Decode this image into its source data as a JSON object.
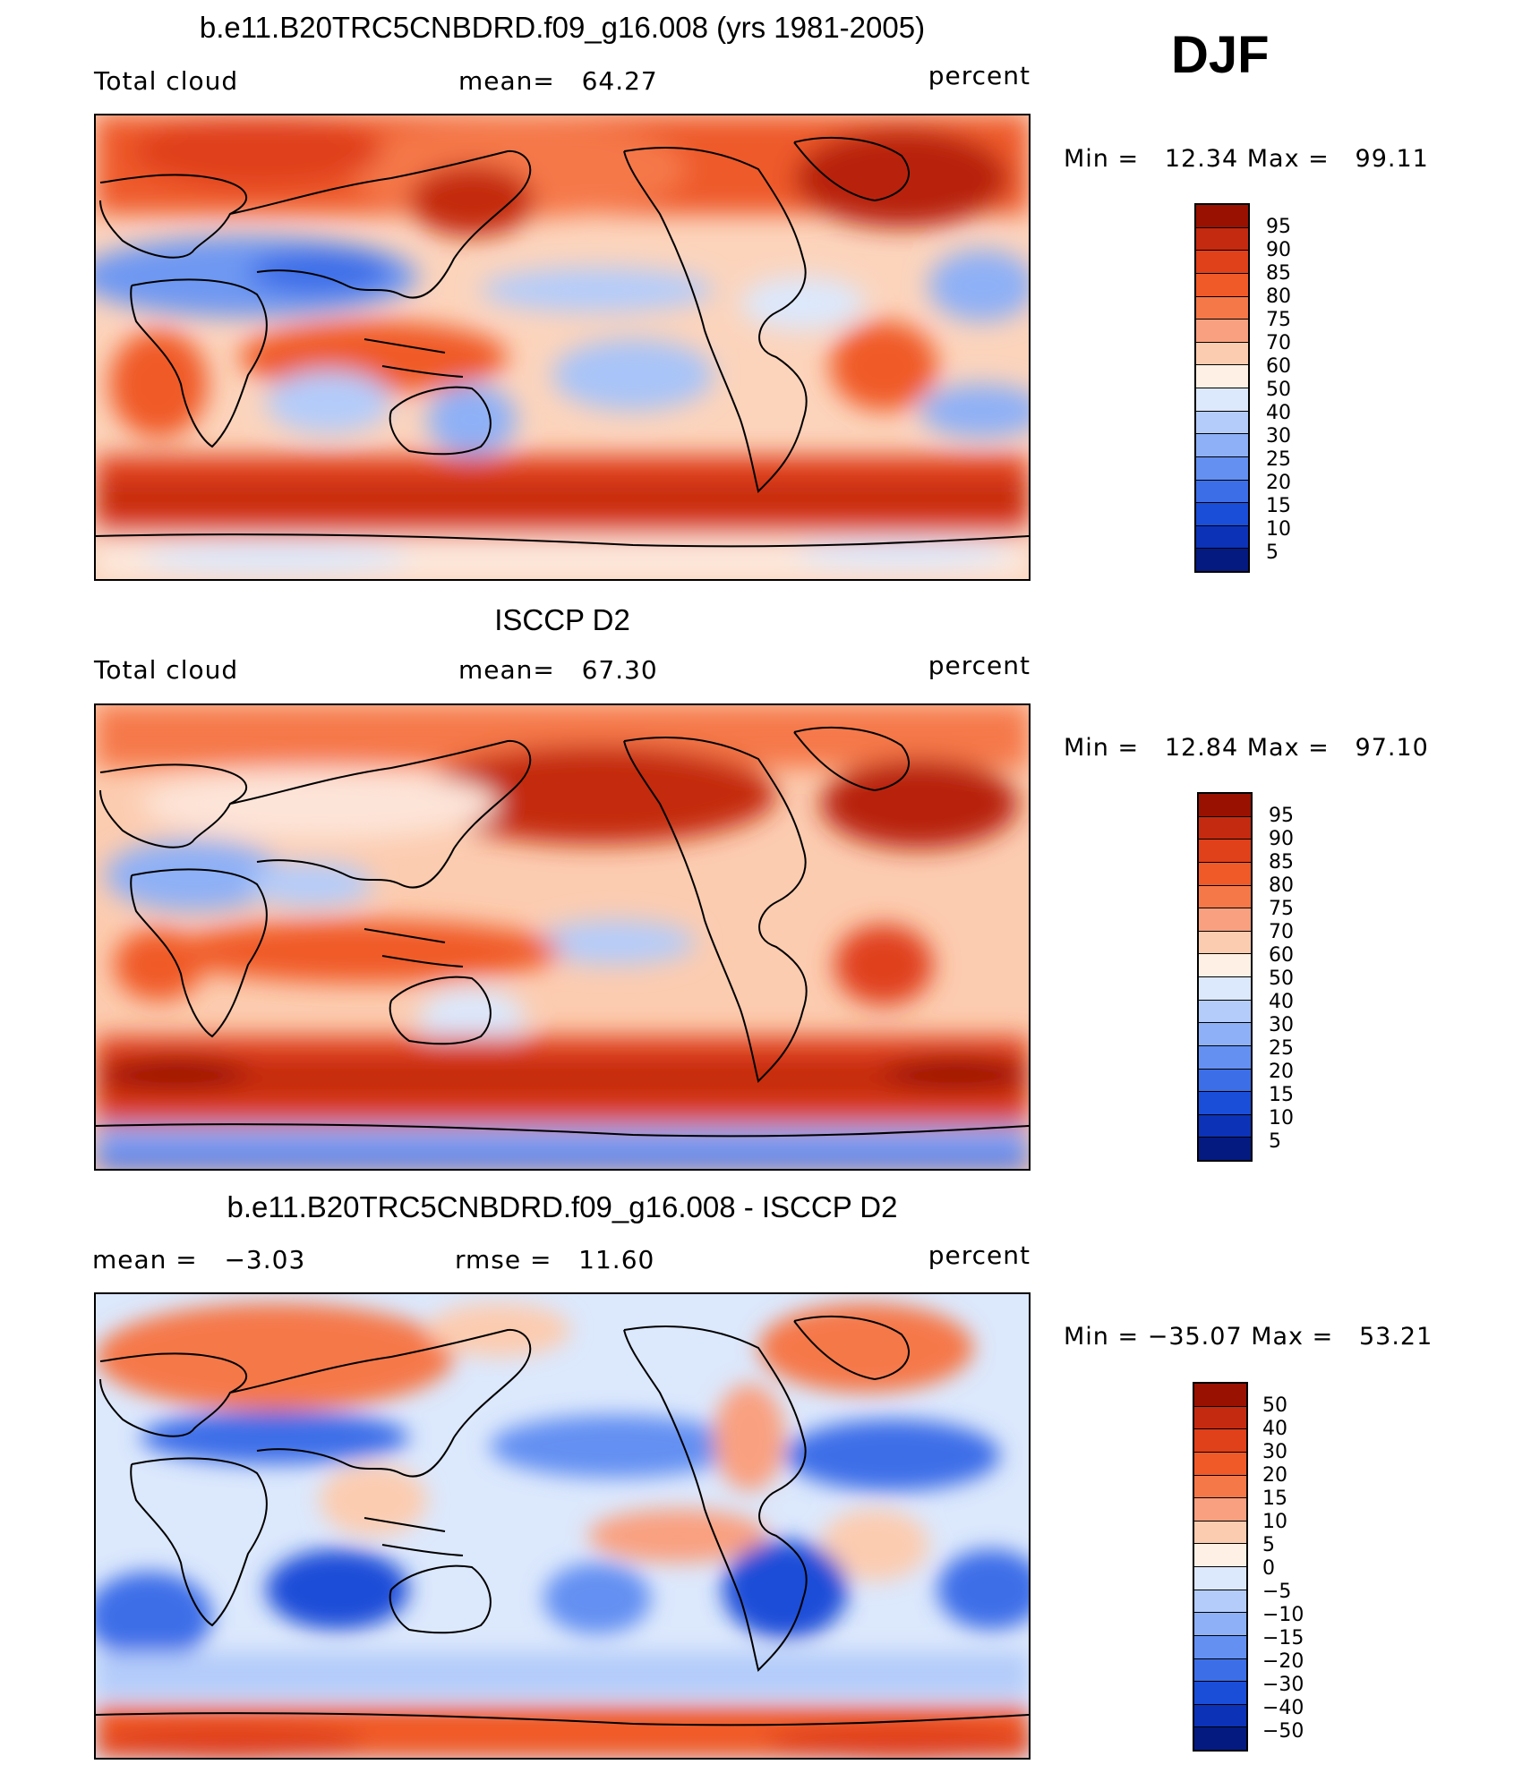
{
  "season": "DJF",
  "colors": {
    "warm": [
      "#fef0e4",
      "#fcccb0",
      "#f9a080",
      "#f57848",
      "#f05a28",
      "#e0401a",
      "#c42a10",
      "#991100"
    ],
    "cool": [
      "#dce8fc",
      "#b4ccfa",
      "#8eb0f6",
      "#6490f2",
      "#3c6ee8",
      "#1a4ed8",
      "#0c32b8",
      "#041a80"
    ],
    "land_outline": "#000000"
  },
  "panels": [
    {
      "title": "b.e11.B20TRC5CNBDRD.f09_g16.008 (yrs 1981-2005)",
      "left_label": "Total cloud",
      "center_label": "mean=   64.27",
      "units": "percent",
      "min_max": "Min =   12.34 Max =   99.11",
      "contour_levels": [
        "95",
        "90",
        "85",
        "80",
        "75",
        "70",
        "60",
        "50",
        "40",
        "30",
        "25",
        "20",
        "15",
        "10",
        "5"
      ]
    },
    {
      "title": "ISCCP D2",
      "left_label": "Total cloud",
      "center_label": "mean=   67.30",
      "units": "percent",
      "min_max": "Min =   12.84 Max =   97.10",
      "contour_levels": [
        "95",
        "90",
        "85",
        "80",
        "75",
        "70",
        "60",
        "50",
        "40",
        "30",
        "25",
        "20",
        "15",
        "10",
        "5"
      ]
    },
    {
      "title": "b.e11.B20TRC5CNBDRD.f09_g16.008 - ISCCP D2",
      "left_label": "mean =   −3.03",
      "center_label": "rmse =   11.60",
      "units": "percent",
      "min_max": "Min = −35.07 Max =   53.21",
      "contour_levels": [
        "50",
        "40",
        "30",
        "20",
        "15",
        "10",
        "5",
        "0",
        "−5",
        "−10",
        "−15",
        "−20",
        "−30",
        "−40",
        "−50"
      ]
    }
  ]
}
